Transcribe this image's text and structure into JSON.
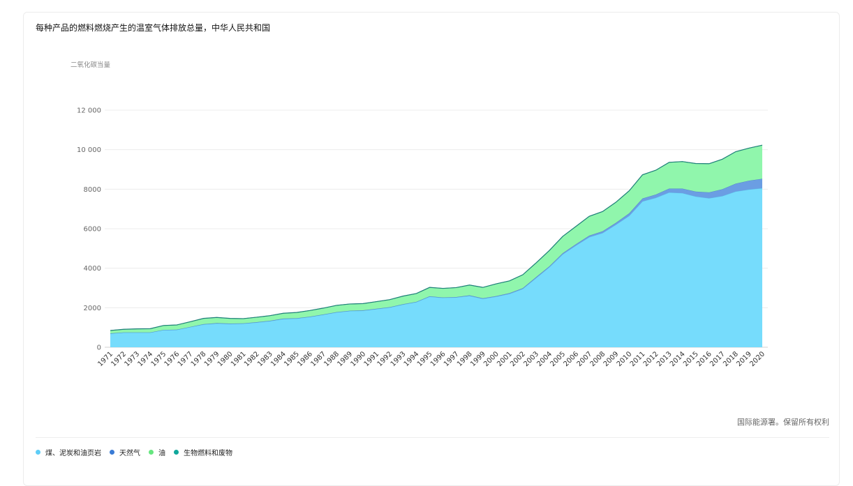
{
  "header": {
    "title": "每种产品的燃料燃烧产生的温室气体排放总量，中华人民共和国"
  },
  "footer": {
    "source": "国际能源署。保留所有权利"
  },
  "colors": {
    "coal": "#76dcfc",
    "gas": "#6b9ee3",
    "oil": "#90f6ac",
    "bio": "#18a49a",
    "coal_dot": "#5ecdf7",
    "gas_dot": "#3a7bd5",
    "oil_dot": "#66e67f",
    "bio_dot": "#10a79b"
  },
  "chart_data": {
    "type": "area",
    "stacked": true,
    "title": "每种产品的燃料燃烧产生的温室气体排放总量，中华人民共和国",
    "xlabel": "",
    "ylabel": "二氧化碳当量",
    "ylim": [
      0,
      12000
    ],
    "yticks": [
      0,
      2000,
      4000,
      6000,
      8000,
      10000,
      12000
    ],
    "ytick_labels": [
      "0",
      "2000",
      "4000",
      "6000",
      "8000",
      "10 000",
      "12 000"
    ],
    "grid": true,
    "legend_position": "bottom-left",
    "x": [
      "1971",
      "1972",
      "1973",
      "1974",
      "1975",
      "1976",
      "1977",
      "1978",
      "1979",
      "1980",
      "1981",
      "1982",
      "1983",
      "1984",
      "1985",
      "1986",
      "1987",
      "1988",
      "1989",
      "1990",
      "1991",
      "1992",
      "1993",
      "1994",
      "1995",
      "1996",
      "1997",
      "1998",
      "1999",
      "2000",
      "2001",
      "2002",
      "2003",
      "2004",
      "2005",
      "2006",
      "2007",
      "2008",
      "2009",
      "2010",
      "2011",
      "2012",
      "2013",
      "2014",
      "2015",
      "2016",
      "2017",
      "2018",
      "2019",
      "2020"
    ],
    "series": [
      {
        "name": "煤、泥炭和油页岩",
        "values": [
          690,
          740,
          740,
          740,
          870,
          880,
          1020,
          1150,
          1200,
          1180,
          1190,
          1250,
          1320,
          1430,
          1450,
          1530,
          1640,
          1760,
          1830,
          1850,
          1930,
          2010,
          2160,
          2280,
          2560,
          2500,
          2520,
          2600,
          2450,
          2560,
          2700,
          2950,
          3500,
          4050,
          4700,
          5150,
          5570,
          5780,
          6200,
          6650,
          7380,
          7560,
          7830,
          7800,
          7630,
          7540,
          7650,
          7880,
          7980,
          8050
        ]
      },
      {
        "name": "天然气",
        "values": [
          10,
          10,
          10,
          10,
          10,
          10,
          10,
          20,
          20,
          20,
          20,
          20,
          20,
          20,
          20,
          20,
          20,
          20,
          20,
          20,
          20,
          20,
          20,
          20,
          20,
          20,
          20,
          30,
          30,
          30,
          40,
          40,
          50,
          50,
          60,
          70,
          80,
          90,
          100,
          130,
          150,
          170,
          200,
          230,
          250,
          300,
          350,
          400,
          450,
          480
        ]
      },
      {
        "name": "油",
        "values": [
          150,
          160,
          180,
          190,
          220,
          240,
          260,
          290,
          290,
          260,
          240,
          250,
          260,
          270,
          290,
          310,
          320,
          340,
          340,
          340,
          360,
          380,
          410,
          420,
          450,
          460,
          480,
          520,
          550,
          620,
          620,
          680,
          720,
          800,
          850,
          900,
          980,
          1000,
          1040,
          1140,
          1200,
          1230,
          1330,
          1370,
          1420,
          1450,
          1520,
          1620,
          1650,
          1700
        ]
      },
      {
        "name": "生物燃料和废物",
        "values": [
          0,
          0,
          0,
          0,
          0,
          0,
          0,
          0,
          0,
          0,
          0,
          0,
          0,
          0,
          0,
          0,
          0,
          0,
          0,
          0,
          0,
          0,
          0,
          0,
          0,
          0,
          0,
          0,
          0,
          0,
          0,
          0,
          0,
          0,
          0,
          0,
          0,
          0,
          0,
          0,
          0,
          0,
          0,
          0,
          0,
          0,
          0,
          0,
          0,
          0
        ]
      }
    ]
  }
}
